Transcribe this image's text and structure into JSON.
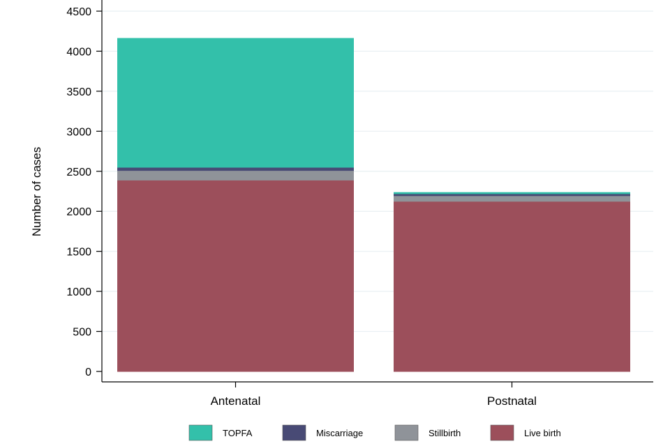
{
  "chart_data": {
    "type": "bar",
    "stacked": true,
    "title": "",
    "xlabel": "",
    "ylabel": "Number of cases",
    "ylim": [
      0,
      4500
    ],
    "yticks": [
      0,
      500,
      1000,
      1500,
      2000,
      2500,
      3000,
      3500,
      4000,
      4500
    ],
    "grid": true,
    "legend_position": "bottom",
    "categories": [
      "Antenatal",
      "Postnatal"
    ],
    "series": [
      {
        "name": "Live birth",
        "color": "#9c4f5b",
        "values": [
          2390,
          2125
        ]
      },
      {
        "name": "Stillbirth",
        "color": "#8f9399",
        "values": [
          120,
          70
        ]
      },
      {
        "name": "Miscarriage",
        "color": "#484a75",
        "values": [
          40,
          25
        ]
      },
      {
        "name": "TOPFA",
        "color": "#33c0aa",
        "values": [
          1610,
          15
        ]
      }
    ],
    "legend_order": [
      "TOPFA",
      "Miscarriage",
      "Stillbirth",
      "Live birth"
    ]
  }
}
